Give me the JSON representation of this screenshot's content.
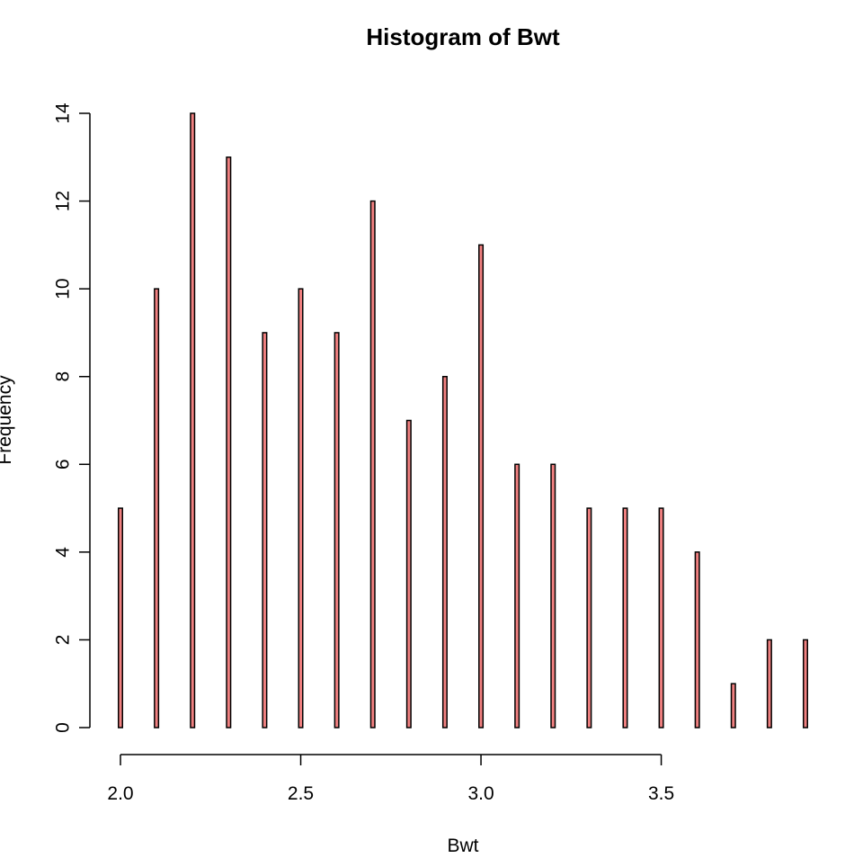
{
  "chart_data": {
    "type": "bar",
    "title": "Histogram of Bwt",
    "xlabel": "Bwt",
    "ylabel": "Frequency",
    "bar_color": "#f08080",
    "border_color": "#000000",
    "categories": [
      2.0,
      2.1,
      2.2,
      2.3,
      2.4,
      2.5,
      2.6,
      2.7,
      2.8,
      2.9,
      3.0,
      3.1,
      3.2,
      3.3,
      3.4,
      3.5,
      3.6,
      3.7,
      3.8,
      3.9
    ],
    "values": [
      5,
      10,
      14,
      13,
      9,
      10,
      9,
      12,
      7,
      8,
      11,
      6,
      6,
      5,
      5,
      5,
      4,
      1,
      2,
      2
    ],
    "xlim": [
      2.0,
      3.9
    ],
    "ylim": [
      0,
      14
    ],
    "x_ticks": [
      2.0,
      2.5,
      3.0,
      3.5
    ],
    "x_tick_labels": [
      "2.0",
      "2.5",
      "3.0",
      "3.5"
    ],
    "y_ticks": [
      0,
      2,
      4,
      6,
      8,
      10,
      12,
      14
    ],
    "y_tick_labels": [
      "0",
      "2",
      "4",
      "6",
      "8",
      "10",
      "12",
      "14"
    ],
    "grid": false,
    "legend": "none"
  }
}
